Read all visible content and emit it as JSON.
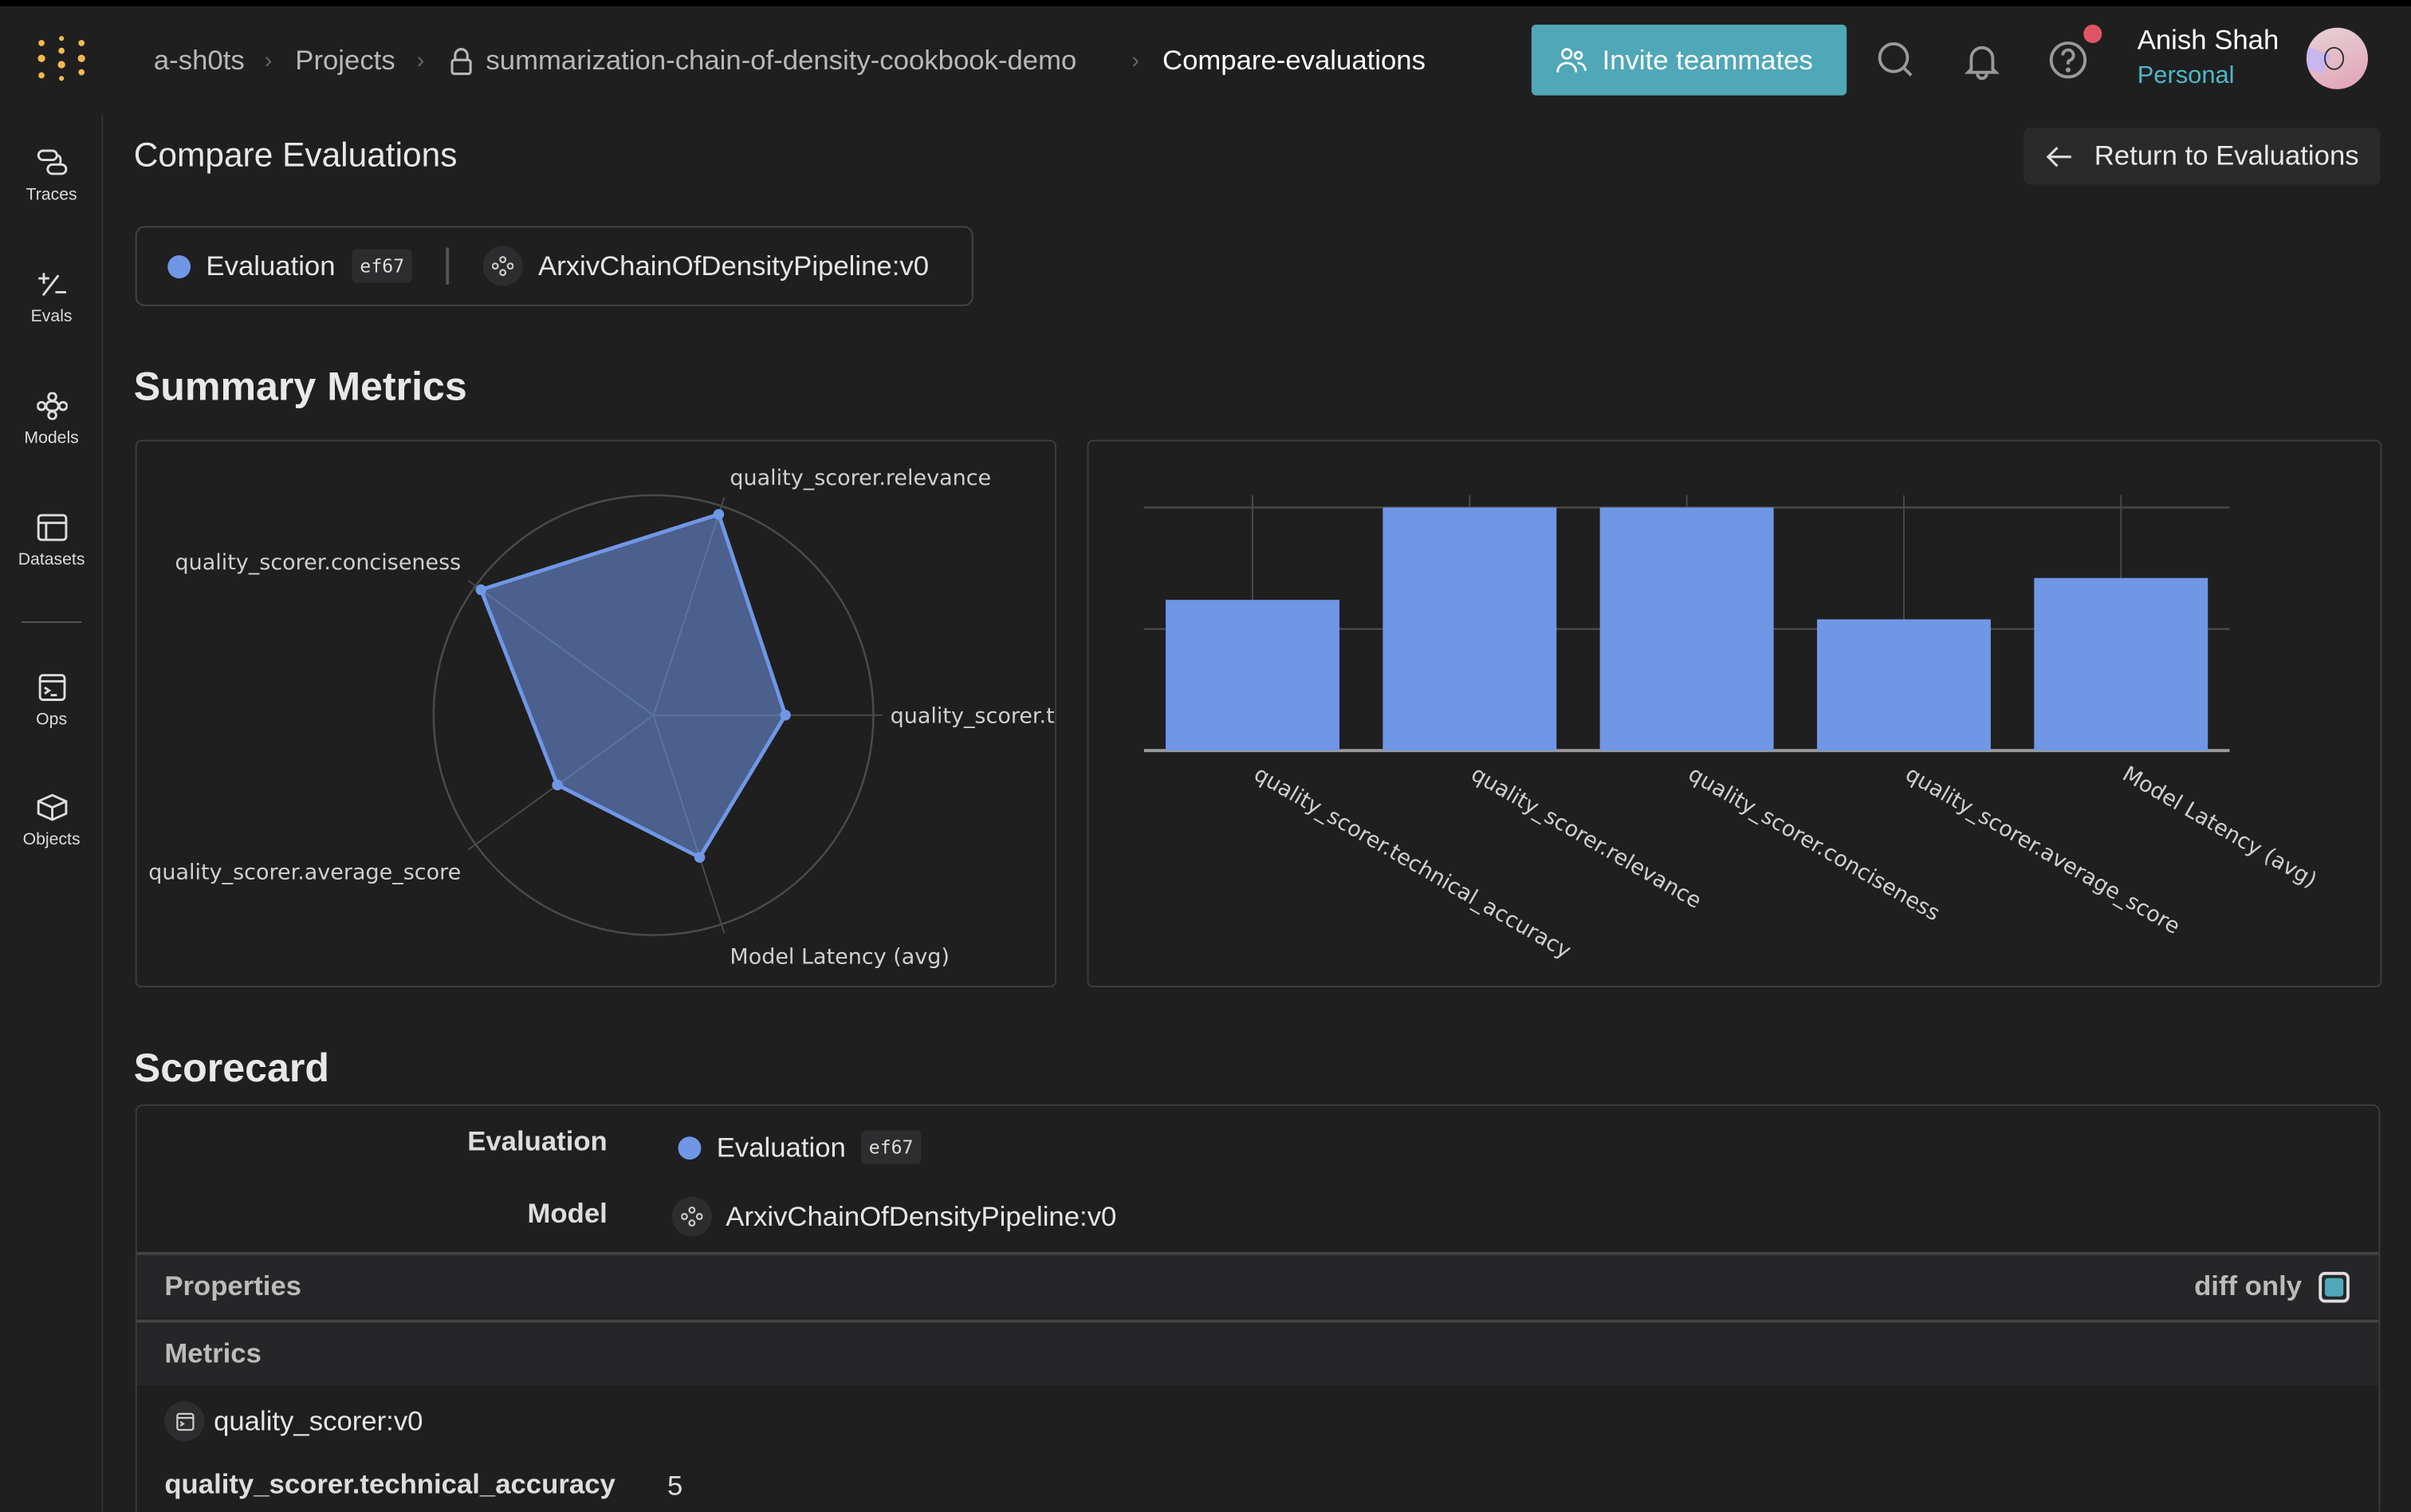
{
  "header": {
    "breadcrumb": [
      "a-sh0ts",
      "Projects",
      "summarization-chain-of-density-cookbook-demo",
      "Compare-evaluations"
    ],
    "invite_label": "Invite teammates",
    "user_name": "Anish Shah",
    "user_account": "Personal",
    "icons": [
      "weave-logo-icon",
      "lock-icon",
      "users-icon",
      "search-icon",
      "bell-icon",
      "help-icon",
      "avatar"
    ],
    "colors": {
      "accent": "#4fa7b8",
      "account": "#4fb8c8",
      "notification": "#e05565"
    }
  },
  "sidebar": {
    "items": [
      {
        "label": "Traces"
      },
      {
        "label": "Evals"
      },
      {
        "label": "Models"
      },
      {
        "label": "Datasets"
      },
      {
        "label": "Ops"
      },
      {
        "label": "Objects"
      }
    ]
  },
  "page": {
    "title": "Compare Evaluations",
    "return_label": "Return to Evaluations",
    "evaluation_name": "Evaluation",
    "evaluation_id": "ef67",
    "model_name": "ArxivChainOfDensityPipeline:v0",
    "series_color": "#7096e6"
  },
  "summary": {
    "title": "Summary Metrics"
  },
  "chart_data": [
    {
      "type": "radar",
      "categories": [
        "quality_scorer.technical_accuracy",
        "quality_scorer.relevance",
        "quality_scorer.conciseness",
        "quality_scorer.average_score",
        "Model Latency (avg)"
      ],
      "visible_labels": [
        "quality_scorer.t",
        "quality_scorer.relevance",
        "quality_scorer.conciseness",
        "quality_scorer.average_score",
        "Model Latency (avg)"
      ],
      "values": [
        0.6,
        0.96,
        0.97,
        0.54,
        0.68
      ],
      "range": [
        0,
        1
      ],
      "grid": true
    },
    {
      "type": "bar",
      "categories": [
        "quality_scorer.technical_accuracy",
        "quality_scorer.relevance",
        "quality_scorer.conciseness",
        "quality_scorer.average_score",
        "Model Latency (avg)"
      ],
      "values": [
        0.62,
        1.0,
        1.0,
        0.54,
        0.71
      ],
      "ylim": [
        0,
        1
      ],
      "grid": true,
      "xlabel": "",
      "ylabel": ""
    }
  ],
  "scorecard": {
    "title": "Scorecard",
    "evaluation_label": "Evaluation",
    "model_label": "Model",
    "properties_label": "Properties",
    "diff_only_label": "diff only",
    "diff_only_checked": true,
    "metrics_label": "Metrics",
    "scorer_name": "quality_scorer:v0",
    "rows": [
      {
        "metric": "quality_scorer.technical_accuracy",
        "value": "5"
      }
    ]
  }
}
